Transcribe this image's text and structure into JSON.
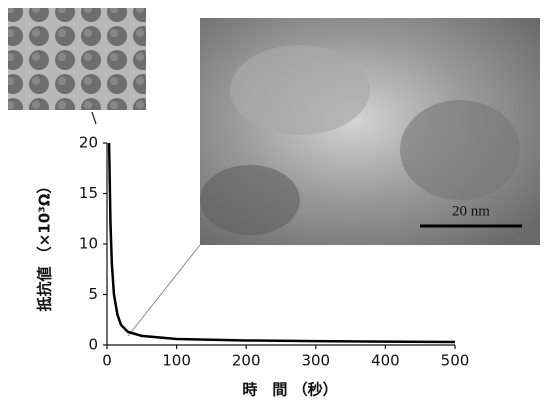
{
  "chart_data": {
    "type": "line",
    "y_label": "抵抗値 （×10³Ω）",
    "x_label": "時　間 （秒）",
    "scale_bar_label": "20 nm",
    "x": [
      3,
      5,
      7,
      10,
      15,
      20,
      30,
      50,
      100,
      200,
      300,
      400,
      500
    ],
    "series": [
      {
        "color": "#000000",
        "values": [
          20,
          12,
          8,
          5,
          3,
          2,
          1.3,
          0.9,
          0.6,
          0.45,
          0.38,
          0.33,
          0.3
        ]
      }
    ],
    "xlim": [
      0,
      500
    ],
    "xticks": [
      0,
      100,
      200,
      300,
      400,
      500
    ],
    "ylim": [
      0,
      20
    ],
    "yticks": [
      0,
      5,
      10,
      15,
      20
    ]
  }
}
